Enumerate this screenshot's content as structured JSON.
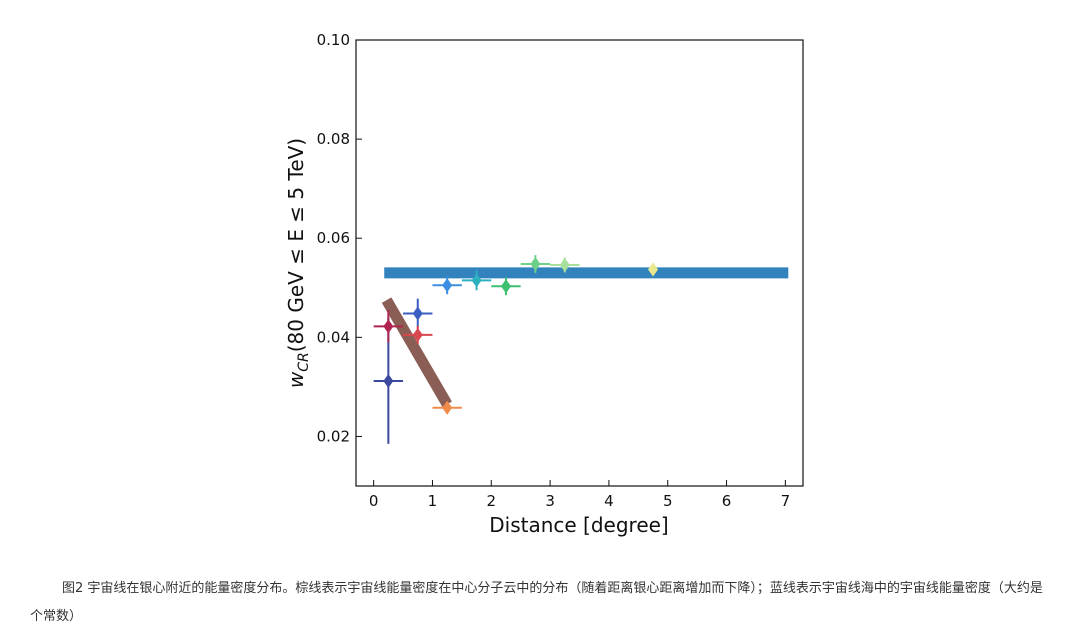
{
  "chart_data": {
    "type": "scatter",
    "xlabel": "Distance [degree]",
    "ylabel_main": "w",
    "ylabel_sub": "CR",
    "ylabel_rest": "(80 GeV ≤ E ≤ 5 TeV)",
    "xlim": [
      -0.3,
      7.3
    ],
    "ylim": [
      0.01,
      0.1
    ],
    "x_ticks": [
      0,
      1,
      2,
      3,
      4,
      5,
      6,
      7
    ],
    "y_ticks": [
      0.02,
      0.04,
      0.06,
      0.08,
      0.1
    ],
    "y_tick_labels": [
      "0.02",
      "0.04",
      "0.06",
      "0.08",
      "0.10"
    ],
    "grid": false,
    "points": [
      {
        "x": 0.25,
        "y": 0.0312,
        "xerr": 0.25,
        "yerr_low": 0.0127,
        "yerr_high": 0.0128,
        "color": "#3b4aa0"
      },
      {
        "x": 0.25,
        "y": 0.0422,
        "xerr": 0.25,
        "yerr_low": 0.0032,
        "yerr_high": 0.0033,
        "color": "#b0254f"
      },
      {
        "x": 0.75,
        "y": 0.0448,
        "xerr": 0.25,
        "yerr_low": 0.003,
        "yerr_high": 0.003,
        "color": "#3a5fc0"
      },
      {
        "x": 0.75,
        "y": 0.0405,
        "xerr": 0.25,
        "yerr_low": 0.0018,
        "yerr_high": 0.0018,
        "color": "#d9474e"
      },
      {
        "x": 1.25,
        "y": 0.0258,
        "xerr": 0.25,
        "yerr_low": 0.0012,
        "yerr_high": 0.0012,
        "color": "#f08c4a"
      },
      {
        "x": 1.25,
        "y": 0.0505,
        "xerr": 0.25,
        "yerr_low": 0.0018,
        "yerr_high": 0.0018,
        "color": "#3a8fe0"
      },
      {
        "x": 1.75,
        "y": 0.0515,
        "xerr": 0.25,
        "yerr_low": 0.002,
        "yerr_high": 0.002,
        "color": "#2bb0c0"
      },
      {
        "x": 2.25,
        "y": 0.0503,
        "xerr": 0.25,
        "yerr_low": 0.0018,
        "yerr_high": 0.0018,
        "color": "#3cc070"
      },
      {
        "x": 2.75,
        "y": 0.0548,
        "xerr": 0.25,
        "yerr_low": 0.0018,
        "yerr_high": 0.0018,
        "color": "#6fd08a"
      },
      {
        "x": 3.25,
        "y": 0.0546,
        "xerr": 0.25,
        "yerr_low": 0.0015,
        "yerr_high": 0.0015,
        "color": "#a6e09a"
      },
      {
        "x": 4.75,
        "y": 0.0537,
        "xerr": 0.0,
        "yerr_low": 0.0012,
        "yerr_high": 0.0012,
        "color": "#e9e88c"
      }
    ],
    "lines": [
      {
        "x": [
          0.18,
          7.05
        ],
        "y": [
          0.053,
          0.053
        ],
        "color": "#3282bd"
      },
      {
        "x": [
          0.22,
          1.25
        ],
        "y": [
          0.0475,
          0.0265
        ],
        "color": "#8b5e55"
      }
    ]
  },
  "caption": "图2 宇宙线在银心附近的能量密度分布。棕线表示宇宙线能量密度在中心分子云中的分布（随着距离银心距离增加而下降）；蓝线表示宇宙线海中的宇宙线能量密度（大约是个常数）"
}
